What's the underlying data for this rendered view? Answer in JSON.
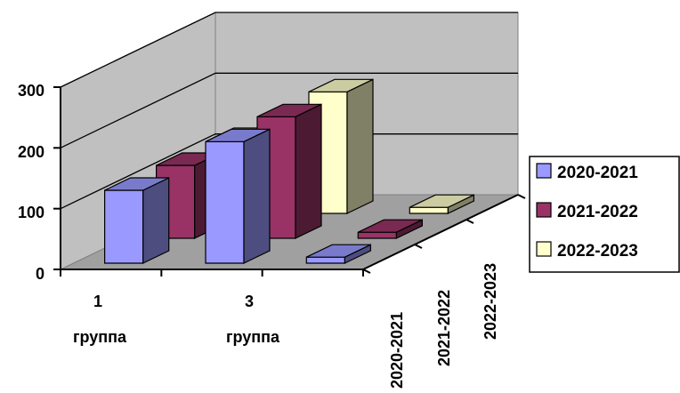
{
  "chart_data": {
    "type": "bar",
    "subtype": "3d-bar",
    "title": "",
    "xlabel": "",
    "ylabel": "",
    "categories": [
      [
        "1",
        "группа"
      ],
      [
        "",
        ""
      ],
      [
        "3",
        "группа"
      ]
    ],
    "depth_axis_labels": [
      "2020-2021",
      "2021-2022",
      "2022-2023"
    ],
    "y_ticks": [
      "0",
      "100",
      "200",
      "300"
    ],
    "ylim": [
      0,
      300
    ],
    "grid": true,
    "legend_position": "right",
    "series": [
      {
        "name": "2020-2021",
        "color": "#9999ff",
        "values": [
          120,
          200,
          10
        ]
      },
      {
        "name": "2021-2022",
        "color": "#993366",
        "values": [
          120,
          200,
          10
        ]
      },
      {
        "name": "2022-2023",
        "color": "#ffffcc",
        "values": [
          120,
          200,
          10
        ]
      }
    ]
  }
}
